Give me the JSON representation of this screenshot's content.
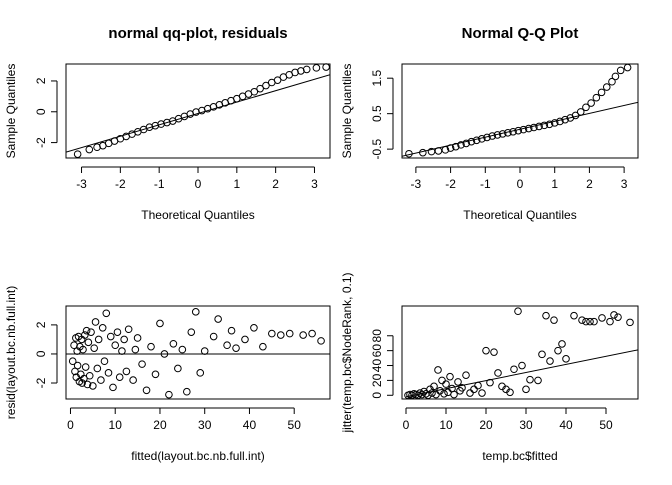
{
  "chart_data": [
    {
      "type": "scatter",
      "title": "normal qq-plot, residuals",
      "xlabel": "Theoretical Quantiles",
      "ylabel": "Sample Quantiles",
      "xlim": [
        -3.4,
        3.4
      ],
      "ylim": [
        -3.0,
        3.1
      ],
      "xticks": [
        -3,
        -2,
        -1,
        0,
        1,
        2,
        3
      ],
      "xtick_labels": [
        "-3",
        "-2",
        "-1",
        "0",
        "1",
        "2",
        "3"
      ],
      "yticks": [
        -2,
        0,
        2
      ],
      "ytick_labels": [
        "-2",
        "0",
        "2"
      ],
      "title_bold": true,
      "points": [
        [
          -3.1,
          -2.75
        ],
        [
          -2.8,
          -2.45
        ],
        [
          -2.6,
          -2.3
        ],
        [
          -2.45,
          -2.2
        ],
        [
          -2.3,
          -2.05
        ],
        [
          -2.15,
          -1.9
        ],
        [
          -2.0,
          -1.75
        ],
        [
          -1.85,
          -1.6
        ],
        [
          -1.7,
          -1.45
        ],
        [
          -1.55,
          -1.3
        ],
        [
          -1.4,
          -1.15
        ],
        [
          -1.25,
          -1.0
        ],
        [
          -1.1,
          -0.9
        ],
        [
          -0.95,
          -0.8
        ],
        [
          -0.8,
          -0.7
        ],
        [
          -0.65,
          -0.6
        ],
        [
          -0.5,
          -0.45
        ],
        [
          -0.35,
          -0.3
        ],
        [
          -0.2,
          -0.15
        ],
        [
          -0.05,
          -0.02
        ],
        [
          0.1,
          0.08
        ],
        [
          0.25,
          0.2
        ],
        [
          0.4,
          0.32
        ],
        [
          0.55,
          0.45
        ],
        [
          0.7,
          0.58
        ],
        [
          0.85,
          0.72
        ],
        [
          1.0,
          0.85
        ],
        [
          1.15,
          1.0
        ],
        [
          1.3,
          1.15
        ],
        [
          1.45,
          1.3
        ],
        [
          1.6,
          1.5
        ],
        [
          1.75,
          1.7
        ],
        [
          1.9,
          1.9
        ],
        [
          2.05,
          2.05
        ],
        [
          2.2,
          2.25
        ],
        [
          2.35,
          2.4
        ],
        [
          2.5,
          2.55
        ],
        [
          2.65,
          2.65
        ],
        [
          2.8,
          2.75
        ],
        [
          3.05,
          2.85
        ],
        [
          3.3,
          2.9
        ]
      ],
      "ref_line": [
        [
          -3.4,
          -2.62
        ],
        [
          3.4,
          2.4
        ]
      ]
    },
    {
      "type": "scatter",
      "title": "Normal Q-Q Plot",
      "xlabel": "Theoretical Quantiles",
      "ylabel": "Sample Quantiles",
      "xlim": [
        -3.4,
        3.4
      ],
      "ylim": [
        -0.75,
        1.9
      ],
      "xticks": [
        -3,
        -2,
        -1,
        0,
        1,
        2,
        3
      ],
      "xtick_labels": [
        "-3",
        "-2",
        "-1",
        "0",
        "1",
        "2",
        "3"
      ],
      "yticks": [
        -0.5,
        0.5,
        1.5
      ],
      "ytick_labels": [
        "-0.5",
        "0.5",
        "1.5"
      ],
      "title_bold": true,
      "points": [
        [
          -3.2,
          -0.63
        ],
        [
          -2.8,
          -0.6
        ],
        [
          -2.55,
          -0.57
        ],
        [
          -2.35,
          -0.55
        ],
        [
          -2.15,
          -0.52
        ],
        [
          -2.0,
          -0.47
        ],
        [
          -1.85,
          -0.43
        ],
        [
          -1.7,
          -0.38
        ],
        [
          -1.55,
          -0.34
        ],
        [
          -1.4,
          -0.29
        ],
        [
          -1.25,
          -0.25
        ],
        [
          -1.1,
          -0.21
        ],
        [
          -0.95,
          -0.17
        ],
        [
          -0.8,
          -0.13
        ],
        [
          -0.65,
          -0.1
        ],
        [
          -0.5,
          -0.07
        ],
        [
          -0.35,
          -0.04
        ],
        [
          -0.2,
          -0.01
        ],
        [
          -0.05,
          0.02
        ],
        [
          0.1,
          0.05
        ],
        [
          0.25,
          0.08
        ],
        [
          0.4,
          0.11
        ],
        [
          0.55,
          0.14
        ],
        [
          0.7,
          0.17
        ],
        [
          0.85,
          0.2
        ],
        [
          1.0,
          0.24
        ],
        [
          1.15,
          0.28
        ],
        [
          1.3,
          0.33
        ],
        [
          1.45,
          0.38
        ],
        [
          1.6,
          0.45
        ],
        [
          1.75,
          0.55
        ],
        [
          1.9,
          0.68
        ],
        [
          2.05,
          0.8
        ],
        [
          2.2,
          0.95
        ],
        [
          2.35,
          1.1
        ],
        [
          2.5,
          1.25
        ],
        [
          2.65,
          1.4
        ],
        [
          2.75,
          1.55
        ],
        [
          2.9,
          1.72
        ],
        [
          3.1,
          1.8
        ]
      ],
      "ref_line": [
        [
          -3.4,
          -0.7
        ],
        [
          3.4,
          0.82
        ]
      ]
    },
    {
      "type": "scatter",
      "title": "",
      "xlabel": "fitted(layout.bc.nb.full.int)",
      "ylabel": "resid(layout.bc.nb.full.int)",
      "xlim": [
        -1,
        58
      ],
      "ylim": [
        -3.1,
        3.3
      ],
      "xticks": [
        0,
        10,
        20,
        30,
        40,
        50
      ],
      "xtick_labels": [
        "0",
        "10",
        "20",
        "30",
        "40",
        "50"
      ],
      "yticks": [
        -2,
        0,
        2
      ],
      "ytick_labels": [
        "-2",
        "0",
        "2"
      ],
      "title_bold": false,
      "points": [
        [
          0.5,
          -0.5
        ],
        [
          0.8,
          0.6
        ],
        [
          1.0,
          -1.2
        ],
        [
          1.2,
          1.1
        ],
        [
          1.3,
          -1.6
        ],
        [
          1.5,
          0.2
        ],
        [
          1.6,
          -0.8
        ],
        [
          1.8,
          1.2
        ],
        [
          2.0,
          -1.9
        ],
        [
          2.1,
          0.5
        ],
        [
          2.3,
          -1.4
        ],
        [
          2.5,
          1.0
        ],
        [
          2.6,
          -2.0
        ],
        [
          2.8,
          0.3
        ],
        [
          3.0,
          -1.7
        ],
        [
          3.2,
          1.3
        ],
        [
          3.4,
          -0.9
        ],
        [
          3.6,
          1.6
        ],
        [
          3.8,
          -2.1
        ],
        [
          4.0,
          0.8
        ],
        [
          4.3,
          -1.5
        ],
        [
          4.6,
          1.5
        ],
        [
          5.0,
          -2.2
        ],
        [
          5.3,
          0.4
        ],
        [
          5.6,
          2.2
        ],
        [
          6.0,
          -1.0
        ],
        [
          6.3,
          1.0
        ],
        [
          6.8,
          -1.8
        ],
        [
          7.2,
          1.8
        ],
        [
          7.6,
          -0.5
        ],
        [
          8.0,
          2.8
        ],
        [
          8.5,
          -1.3
        ],
        [
          9.0,
          1.2
        ],
        [
          9.5,
          -2.3
        ],
        [
          10.0,
          0.6
        ],
        [
          10.5,
          1.5
        ],
        [
          11.0,
          -1.6
        ],
        [
          11.5,
          0.2
        ],
        [
          12.0,
          1.0
        ],
        [
          12.5,
          -1.2
        ],
        [
          13.0,
          1.7
        ],
        [
          14.0,
          -1.8
        ],
        [
          14.5,
          0.3
        ],
        [
          15.0,
          1.1
        ],
        [
          16.0,
          -0.7
        ],
        [
          17.0,
          -2.5
        ],
        [
          18.0,
          0.5
        ],
        [
          19.0,
          -1.4
        ],
        [
          20.0,
          2.1
        ],
        [
          21.0,
          0.0
        ],
        [
          22.0,
          -2.8
        ],
        [
          23.0,
          0.7
        ],
        [
          24.0,
          -1.0
        ],
        [
          25.0,
          0.3
        ],
        [
          26.0,
          -2.6
        ],
        [
          27.0,
          1.5
        ],
        [
          28.0,
          2.9
        ],
        [
          29.0,
          -1.3
        ],
        [
          30.0,
          0.2
        ],
        [
          32.0,
          1.2
        ],
        [
          33.0,
          2.4
        ],
        [
          35.0,
          0.6
        ],
        [
          36.0,
          1.6
        ],
        [
          37.0,
          0.4
        ],
        [
          39.0,
          1.0
        ],
        [
          41.0,
          1.8
        ],
        [
          43.0,
          0.5
        ],
        [
          45.0,
          1.4
        ],
        [
          47.0,
          1.3
        ],
        [
          49.0,
          1.4
        ],
        [
          52.0,
          1.3
        ],
        [
          54.0,
          1.4
        ],
        [
          56.0,
          0.9
        ]
      ],
      "ref_line": [
        [
          -1,
          0
        ],
        [
          58,
          0
        ]
      ]
    },
    {
      "type": "scatter",
      "title": "",
      "xlabel": "temp.bc$fitted",
      "ylabel": "jitter(temp.bc$NodeRank, 0.1)",
      "xlim": [
        -1,
        58
      ],
      "ylim": [
        -5,
        120
      ],
      "xticks": [
        0,
        10,
        20,
        30,
        40,
        50
      ],
      "xtick_labels": [
        "0",
        "10",
        "20",
        "30",
        "40",
        "50"
      ],
      "yticks": [
        0,
        20,
        40,
        60,
        80
      ],
      "ytick_labels": [
        "0",
        "20",
        "40",
        "60",
        "80"
      ],
      "title_bold": false,
      "points": [
        [
          0.5,
          0
        ],
        [
          1.0,
          1
        ],
        [
          1.5,
          0
        ],
        [
          2.0,
          2
        ],
        [
          2.5,
          1
        ],
        [
          3.0,
          0
        ],
        [
          3.5,
          3
        ],
        [
          4.0,
          1
        ],
        [
          4.5,
          5
        ],
        [
          5.0,
          2
        ],
        [
          5.5,
          0
        ],
        [
          6.0,
          8
        ],
        [
          6.5,
          3
        ],
        [
          7.0,
          12
        ],
        [
          7.5,
          1
        ],
        [
          8.0,
          34
        ],
        [
          8.5,
          6
        ],
        [
          9.0,
          20
        ],
        [
          9.5,
          2
        ],
        [
          10.0,
          15
        ],
        [
          10.5,
          4
        ],
        [
          11.0,
          25
        ],
        [
          11.5,
          9
        ],
        [
          12.0,
          1
        ],
        [
          13.0,
          18
        ],
        [
          13.5,
          6
        ],
        [
          14.0,
          10
        ],
        [
          15.0,
          27
        ],
        [
          16.0,
          3
        ],
        [
          17.0,
          8
        ],
        [
          18.0,
          13
        ],
        [
          19.0,
          3
        ],
        [
          20.0,
          60
        ],
        [
          21.0,
          17
        ],
        [
          22.0,
          58
        ],
        [
          23.0,
          30
        ],
        [
          24.0,
          12
        ],
        [
          25.0,
          8
        ],
        [
          26.0,
          4
        ],
        [
          27.0,
          35
        ],
        [
          28.0,
          113
        ],
        [
          29.0,
          40
        ],
        [
          30.0,
          8
        ],
        [
          31.0,
          21
        ],
        [
          33.0,
          20
        ],
        [
          34.0,
          55
        ],
        [
          35.0,
          107
        ],
        [
          36.0,
          46
        ],
        [
          37.0,
          101
        ],
        [
          38.0,
          60
        ],
        [
          39.0,
          69
        ],
        [
          40.0,
          49
        ],
        [
          42.0,
          107
        ],
        [
          44.0,
          101
        ],
        [
          45.0,
          99
        ],
        [
          46.0,
          99
        ],
        [
          47.0,
          99
        ],
        [
          49.0,
          104
        ],
        [
          51.0,
          99
        ],
        [
          52.0,
          108
        ],
        [
          53.0,
          105
        ],
        [
          56.0,
          98
        ]
      ],
      "ref_line": [
        [
          0,
          -2
        ],
        [
          58,
          61
        ]
      ]
    }
  ]
}
